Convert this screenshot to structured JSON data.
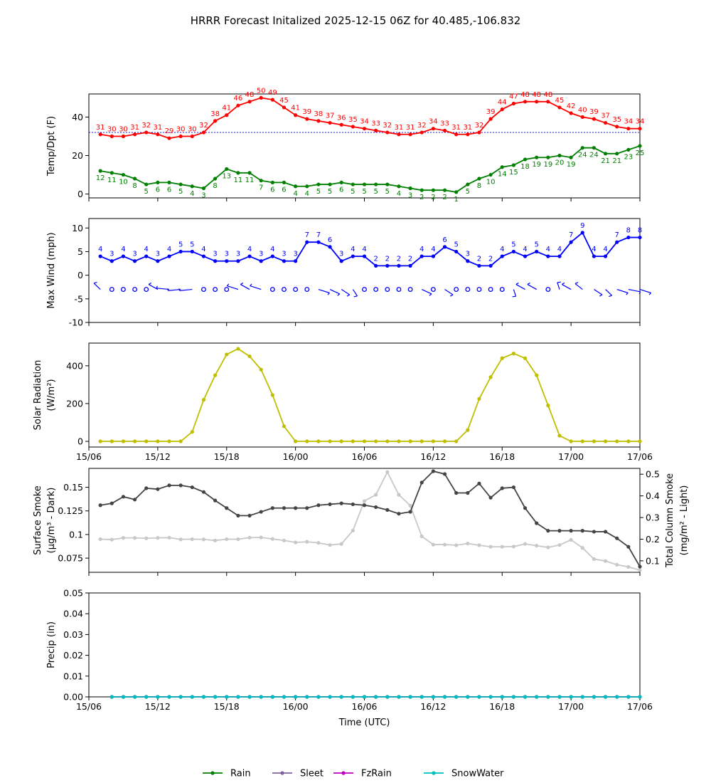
{
  "title": "HRRR Forecast Initalized 2025-12-15 06Z for 40.485,-106.832",
  "xlabel": "Time (UTC)",
  "xticks": [
    "15/06",
    "15/12",
    "15/18",
    "16/00",
    "16/06",
    "16/12",
    "16/18",
    "17/00",
    "17/06"
  ],
  "colors": {
    "temp": "#ff0000",
    "dewpoint": "#008000",
    "wind": "#0000ff",
    "solar": "#bfbf00",
    "smoke_dark": "#444444",
    "smoke_light": "#c8c8c8",
    "rain": "#008000",
    "sleet": "#8064a2",
    "fzrain": "#c000c0",
    "snowwater": "#00bfbf",
    "freezing_line": "#0000ff"
  },
  "chart_data": [
    {
      "type": "line",
      "name": "temperature-dewpoint",
      "ylabel": "Temp/Dpt (F)",
      "ylim": [
        -2,
        52
      ],
      "yticks": [
        0,
        20,
        40
      ],
      "x_start_hour": 1,
      "freezing_line": 32,
      "series": [
        {
          "name": "Temperature",
          "values": [
            31,
            30,
            30,
            31,
            32,
            31,
            29,
            30,
            30,
            32,
            38,
            41,
            46,
            48,
            50,
            49,
            45,
            41,
            39,
            38,
            37,
            36,
            35,
            34,
            33,
            32,
            31,
            31,
            32,
            34,
            33,
            31,
            31,
            32,
            39,
            44,
            47,
            48,
            48,
            48,
            45,
            42,
            40,
            39,
            37,
            35,
            34,
            34
          ]
        },
        {
          "name": "Dewpoint",
          "values": [
            12,
            11,
            10,
            8,
            5,
            6,
            6,
            5,
            4,
            3,
            8,
            13,
            11,
            11,
            7,
            6,
            6,
            4,
            4,
            5,
            5,
            6,
            5,
            5,
            5,
            5,
            4,
            3,
            2,
            2,
            2,
            1,
            5,
            8,
            10,
            14,
            15,
            18,
            19,
            19,
            20,
            19,
            24,
            24,
            21,
            21,
            23,
            25
          ]
        }
      ]
    },
    {
      "type": "line",
      "name": "max-wind",
      "ylabel": "Max Wind (mph)",
      "ylim": [
        -10,
        12
      ],
      "yticks": [
        -10,
        -5,
        0,
        5,
        10
      ],
      "x_start_hour": 1,
      "series": [
        {
          "name": "Max Wind",
          "values": [
            4,
            3,
            4,
            3,
            4,
            3,
            4,
            5,
            5,
            4,
            3,
            3,
            3,
            4,
            3,
            4,
            3,
            3,
            7,
            7,
            6,
            3,
            4,
            4,
            2,
            2,
            2,
            2,
            4,
            4,
            6,
            5,
            3,
            2,
            2,
            4,
            5,
            4,
            5,
            4,
            4,
            7,
            9,
            4,
            4,
            7,
            8,
            8
          ]
        }
      ]
    },
    {
      "type": "line",
      "name": "solar-radiation",
      "ylabel": "Solar Radiation",
      "yunit": "(W/m²)",
      "ylim": [
        -30,
        520
      ],
      "yticks": [
        0,
        200,
        400
      ],
      "x_start_hour": 1,
      "series": [
        {
          "name": "Solar Radiation",
          "values": [
            0,
            0,
            0,
            0,
            0,
            0,
            0,
            0,
            50,
            220,
            350,
            460,
            490,
            450,
            380,
            245,
            80,
            0,
            0,
            0,
            0,
            0,
            0,
            0,
            0,
            0,
            0,
            0,
            0,
            0,
            0,
            0,
            60,
            225,
            340,
            440,
            465,
            440,
            350,
            190,
            30,
            0,
            0,
            0,
            0,
            0,
            0,
            0
          ]
        }
      ]
    },
    {
      "type": "line",
      "name": "smoke",
      "ylabel": "Surface Smoke",
      "yunit": "(μg/m³ - Dark)",
      "y2label": "Total Column Smoke",
      "y2unit": "(mg/m² - Light)",
      "ylim": [
        0.06,
        0.17
      ],
      "yticks": [
        0.075,
        0.1,
        0.125,
        0.15
      ],
      "y2lim": [
        0.047,
        0.527
      ],
      "y2ticks": [
        0.1,
        0.2,
        0.3,
        0.4,
        0.5
      ],
      "x_start_hour": 1,
      "series": [
        {
          "name": "Surface Smoke",
          "axis": "left",
          "values": [
            0.131,
            0.133,
            0.14,
            0.137,
            0.149,
            0.148,
            0.152,
            0.152,
            0.15,
            0.145,
            0.136,
            0.128,
            0.12,
            0.12,
            0.124,
            0.128,
            0.128,
            0.128,
            0.128,
            0.131,
            0.132,
            0.133,
            0.132,
            0.131,
            0.129,
            0.126,
            0.122,
            0.124,
            0.155,
            0.167,
            0.164,
            0.144,
            0.144,
            0.154,
            0.139,
            0.149,
            0.15,
            0.128,
            0.112,
            0.104,
            0.104,
            0.104,
            0.104,
            0.103,
            0.103,
            0.096,
            0.087,
            0.066
          ]
        },
        {
          "name": "Total Column Smoke",
          "axis": "right",
          "values": [
            0.2,
            0.198,
            0.206,
            0.206,
            0.204,
            0.206,
            0.207,
            0.199,
            0.2,
            0.199,
            0.194,
            0.2,
            0.2,
            0.207,
            0.208,
            0.201,
            0.194,
            0.185,
            0.188,
            0.183,
            0.173,
            0.178,
            0.24,
            0.376,
            0.405,
            0.51,
            0.405,
            0.355,
            0.213,
            0.175,
            0.175,
            0.172,
            0.18,
            0.172,
            0.165,
            0.165,
            0.166,
            0.178,
            0.17,
            0.162,
            0.173,
            0.197,
            0.16,
            0.108,
            0.099,
            0.082,
            0.072,
            0.057
          ]
        }
      ]
    },
    {
      "type": "line",
      "name": "precipitation",
      "ylabel": "Precip (in)",
      "ylim": [
        0,
        0.05
      ],
      "yticks": [
        0.0,
        0.01,
        0.02,
        0.03,
        0.04,
        0.05
      ],
      "ytick_labels": [
        "0.00",
        "0.01",
        "0.02",
        "0.03",
        "0.04",
        "0.05"
      ],
      "x_start_hour": 2,
      "series": [
        {
          "name": "Rain",
          "values": [
            0,
            0,
            0,
            0,
            0,
            0,
            0,
            0,
            0,
            0,
            0,
            0,
            0,
            0,
            0,
            0,
            0,
            0,
            0,
            0,
            0,
            0,
            0,
            0,
            0,
            0,
            0,
            0,
            0,
            0,
            0,
            0,
            0,
            0,
            0,
            0,
            0,
            0,
            0,
            0,
            0,
            0,
            0,
            0,
            0,
            0,
            0
          ]
        },
        {
          "name": "Sleet",
          "values": [
            0,
            0,
            0,
            0,
            0,
            0,
            0,
            0,
            0,
            0,
            0,
            0,
            0,
            0,
            0,
            0,
            0,
            0,
            0,
            0,
            0,
            0,
            0,
            0,
            0,
            0,
            0,
            0,
            0,
            0,
            0,
            0,
            0,
            0,
            0,
            0,
            0,
            0,
            0,
            0,
            0,
            0,
            0,
            0,
            0,
            0,
            0
          ]
        },
        {
          "name": "FzRain",
          "values": [
            0,
            0,
            0,
            0,
            0,
            0,
            0,
            0,
            0,
            0,
            0,
            0,
            0,
            0,
            0,
            0,
            0,
            0,
            0,
            0,
            0,
            0,
            0,
            0,
            0,
            0,
            0,
            0,
            0,
            0,
            0,
            0,
            0,
            0,
            0,
            0,
            0,
            0,
            0,
            0,
            0,
            0,
            0,
            0,
            0,
            0,
            0
          ]
        },
        {
          "name": "SnowWater",
          "values": [
            0,
            0,
            0,
            0,
            0,
            0,
            0,
            0,
            0,
            0,
            0,
            0,
            0,
            0,
            0,
            0,
            0,
            0,
            0,
            0,
            0,
            0,
            0,
            0,
            0,
            0,
            0,
            0,
            0,
            0,
            0,
            0,
            0,
            0,
            0,
            0,
            0,
            0,
            0,
            0,
            0,
            0,
            0,
            0,
            0,
            0,
            0
          ]
        }
      ]
    }
  ],
  "wind_barbs": {
    "note": "wind direction (degrees from) per hour; null = calm circle",
    "directions": [
      330,
      null,
      null,
      null,
      null,
      315,
      280,
      260,
      260,
      null,
      null,
      null,
      300,
      315,
      300,
      null,
      null,
      null,
      null,
      120,
      130,
      140,
      160,
      null,
      null,
      null,
      null,
      null,
      130,
      null,
      140,
      null,
      null,
      null,
      null,
      null,
      170,
      315,
      315,
      null,
      350,
      315,
      325,
      140,
      150,
      120,
      110,
      120
    ]
  },
  "legend": [
    "Rain",
    "Sleet",
    "FzRain",
    "SnowWater"
  ]
}
